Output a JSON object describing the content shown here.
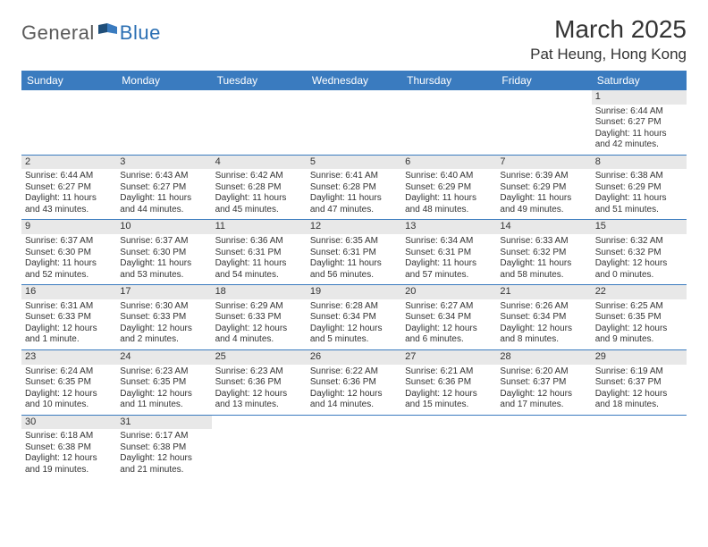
{
  "logo": {
    "part1": "General",
    "part2": "Blue"
  },
  "title": "March 2025",
  "location": "Pat Heung, Hong Kong",
  "colors": {
    "header_bg": "#3a7bbf",
    "header_text": "#ffffff",
    "daynum_bg": "#e8e8e8",
    "border": "#3a7bbf",
    "logo_gray": "#5a5a5a",
    "logo_blue": "#2b6fb3"
  },
  "weekdays": [
    "Sunday",
    "Monday",
    "Tuesday",
    "Wednesday",
    "Thursday",
    "Friday",
    "Saturday"
  ],
  "weeks": [
    [
      null,
      null,
      null,
      null,
      null,
      null,
      {
        "d": "1",
        "sunrise": "6:44 AM",
        "sunset": "6:27 PM",
        "daylight": "11 hours and 42 minutes."
      }
    ],
    [
      {
        "d": "2",
        "sunrise": "6:44 AM",
        "sunset": "6:27 PM",
        "daylight": "11 hours and 43 minutes."
      },
      {
        "d": "3",
        "sunrise": "6:43 AM",
        "sunset": "6:27 PM",
        "daylight": "11 hours and 44 minutes."
      },
      {
        "d": "4",
        "sunrise": "6:42 AM",
        "sunset": "6:28 PM",
        "daylight": "11 hours and 45 minutes."
      },
      {
        "d": "5",
        "sunrise": "6:41 AM",
        "sunset": "6:28 PM",
        "daylight": "11 hours and 47 minutes."
      },
      {
        "d": "6",
        "sunrise": "6:40 AM",
        "sunset": "6:29 PM",
        "daylight": "11 hours and 48 minutes."
      },
      {
        "d": "7",
        "sunrise": "6:39 AM",
        "sunset": "6:29 PM",
        "daylight": "11 hours and 49 minutes."
      },
      {
        "d": "8",
        "sunrise": "6:38 AM",
        "sunset": "6:29 PM",
        "daylight": "11 hours and 51 minutes."
      }
    ],
    [
      {
        "d": "9",
        "sunrise": "6:37 AM",
        "sunset": "6:30 PM",
        "daylight": "11 hours and 52 minutes."
      },
      {
        "d": "10",
        "sunrise": "6:37 AM",
        "sunset": "6:30 PM",
        "daylight": "11 hours and 53 minutes."
      },
      {
        "d": "11",
        "sunrise": "6:36 AM",
        "sunset": "6:31 PM",
        "daylight": "11 hours and 54 minutes."
      },
      {
        "d": "12",
        "sunrise": "6:35 AM",
        "sunset": "6:31 PM",
        "daylight": "11 hours and 56 minutes."
      },
      {
        "d": "13",
        "sunrise": "6:34 AM",
        "sunset": "6:31 PM",
        "daylight": "11 hours and 57 minutes."
      },
      {
        "d": "14",
        "sunrise": "6:33 AM",
        "sunset": "6:32 PM",
        "daylight": "11 hours and 58 minutes."
      },
      {
        "d": "15",
        "sunrise": "6:32 AM",
        "sunset": "6:32 PM",
        "daylight": "12 hours and 0 minutes."
      }
    ],
    [
      {
        "d": "16",
        "sunrise": "6:31 AM",
        "sunset": "6:33 PM",
        "daylight": "12 hours and 1 minute."
      },
      {
        "d": "17",
        "sunrise": "6:30 AM",
        "sunset": "6:33 PM",
        "daylight": "12 hours and 2 minutes."
      },
      {
        "d": "18",
        "sunrise": "6:29 AM",
        "sunset": "6:33 PM",
        "daylight": "12 hours and 4 minutes."
      },
      {
        "d": "19",
        "sunrise": "6:28 AM",
        "sunset": "6:34 PM",
        "daylight": "12 hours and 5 minutes."
      },
      {
        "d": "20",
        "sunrise": "6:27 AM",
        "sunset": "6:34 PM",
        "daylight": "12 hours and 6 minutes."
      },
      {
        "d": "21",
        "sunrise": "6:26 AM",
        "sunset": "6:34 PM",
        "daylight": "12 hours and 8 minutes."
      },
      {
        "d": "22",
        "sunrise": "6:25 AM",
        "sunset": "6:35 PM",
        "daylight": "12 hours and 9 minutes."
      }
    ],
    [
      {
        "d": "23",
        "sunrise": "6:24 AM",
        "sunset": "6:35 PM",
        "daylight": "12 hours and 10 minutes."
      },
      {
        "d": "24",
        "sunrise": "6:23 AM",
        "sunset": "6:35 PM",
        "daylight": "12 hours and 11 minutes."
      },
      {
        "d": "25",
        "sunrise": "6:23 AM",
        "sunset": "6:36 PM",
        "daylight": "12 hours and 13 minutes."
      },
      {
        "d": "26",
        "sunrise": "6:22 AM",
        "sunset": "6:36 PM",
        "daylight": "12 hours and 14 minutes."
      },
      {
        "d": "27",
        "sunrise": "6:21 AM",
        "sunset": "6:36 PM",
        "daylight": "12 hours and 15 minutes."
      },
      {
        "d": "28",
        "sunrise": "6:20 AM",
        "sunset": "6:37 PM",
        "daylight": "12 hours and 17 minutes."
      },
      {
        "d": "29",
        "sunrise": "6:19 AM",
        "sunset": "6:37 PM",
        "daylight": "12 hours and 18 minutes."
      }
    ],
    [
      {
        "d": "30",
        "sunrise": "6:18 AM",
        "sunset": "6:38 PM",
        "daylight": "12 hours and 19 minutes."
      },
      {
        "d": "31",
        "sunrise": "6:17 AM",
        "sunset": "6:38 PM",
        "daylight": "12 hours and 21 minutes."
      },
      null,
      null,
      null,
      null,
      null
    ]
  ],
  "labels": {
    "sunrise": "Sunrise:",
    "sunset": "Sunset:",
    "daylight": "Daylight:"
  }
}
